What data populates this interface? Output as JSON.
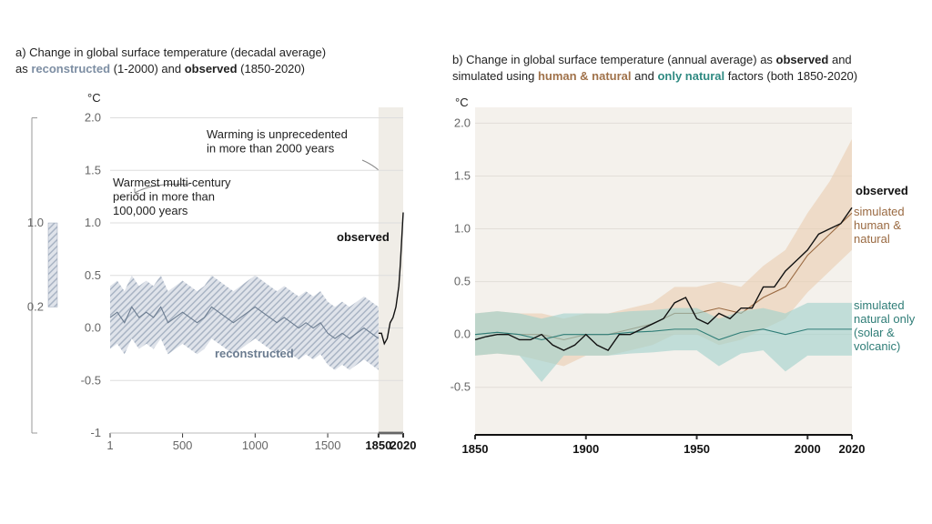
{
  "chart_data": [
    {
      "type": "line",
      "title_lines": [
        [
          {
            "text": "a) Change in global surface temperature (decadal average)"
          }
        ],
        [
          {
            "text": "as "
          },
          {
            "text": "reconstructed",
            "color": "#7d8ea3",
            "bold": true
          },
          {
            "text": " (1-2000) and "
          },
          {
            "text": "observed",
            "bold": true
          },
          {
            "text": " (1850-2020)"
          }
        ]
      ],
      "unit": "°C",
      "xlim": [
        1,
        2020
      ],
      "ylim": [
        -1,
        2.1
      ],
      "xticks": [
        1,
        500,
        1000,
        1500,
        1850,
        2020
      ],
      "yticks": [
        -1,
        -0.5,
        {
          "value": 0,
          "label": "0.0"
        },
        0.5,
        {
          "value": 1,
          "label": "1.0"
        },
        1.5,
        {
          "value": 2,
          "label": "2.0"
        }
      ],
      "grid": true,
      "highlight_x": [
        1850,
        2020
      ],
      "highlight_color": "#f0ede7",
      "range_bar": {
        "values": [
          0.2,
          1.0
        ],
        "labels": [
          "0.2",
          "1.0"
        ],
        "color": "#9aa6b8"
      },
      "series": [
        {
          "label_lines": [
            "reconstructed"
          ],
          "color": "#6b7c90",
          "band_color": "#a9b4c4",
          "hatch": true,
          "x": [
            1,
            50,
            100,
            150,
            200,
            250,
            300,
            350,
            400,
            450,
            500,
            550,
            600,
            650,
            700,
            750,
            800,
            850,
            900,
            950,
            1000,
            1050,
            1100,
            1150,
            1200,
            1250,
            1300,
            1350,
            1400,
            1450,
            1500,
            1550,
            1600,
            1650,
            1700,
            1750,
            1800,
            1850
          ],
          "values": [
            0.1,
            0.15,
            0.05,
            0.2,
            0.1,
            0.15,
            0.1,
            0.2,
            0.05,
            0.1,
            0.15,
            0.1,
            0.05,
            0.1,
            0.2,
            0.15,
            0.1,
            0.05,
            0.1,
            0.15,
            0.2,
            0.15,
            0.1,
            0.05,
            0.1,
            0.05,
            0.0,
            0.05,
            0.0,
            0.05,
            -0.05,
            -0.1,
            -0.05,
            -0.1,
            -0.05,
            0.0,
            -0.05,
            -0.1
          ],
          "upper": [
            0.4,
            0.45,
            0.35,
            0.5,
            0.4,
            0.45,
            0.4,
            0.5,
            0.35,
            0.4,
            0.45,
            0.4,
            0.35,
            0.4,
            0.5,
            0.45,
            0.4,
            0.35,
            0.4,
            0.45,
            0.5,
            0.45,
            0.4,
            0.35,
            0.4,
            0.35,
            0.3,
            0.35,
            0.3,
            0.35,
            0.25,
            0.2,
            0.25,
            0.2,
            0.25,
            0.3,
            0.25,
            0.2
          ],
          "lower": [
            -0.2,
            -0.15,
            -0.25,
            -0.1,
            -0.2,
            -0.15,
            -0.2,
            -0.1,
            -0.25,
            -0.2,
            -0.15,
            -0.2,
            -0.25,
            -0.2,
            -0.1,
            -0.15,
            -0.2,
            -0.25,
            -0.2,
            -0.15,
            -0.1,
            -0.15,
            -0.2,
            -0.25,
            -0.2,
            -0.25,
            -0.3,
            -0.25,
            -0.3,
            -0.25,
            -0.35,
            -0.4,
            -0.35,
            -0.4,
            -0.35,
            -0.3,
            -0.35,
            -0.4
          ]
        },
        {
          "label_lines": [
            "observed"
          ],
          "color": "#111111",
          "x": [
            1850,
            1870,
            1890,
            1910,
            1930,
            1950,
            1970,
            1990,
            2000,
            2010,
            2020
          ],
          "values": [
            -0.05,
            -0.05,
            -0.15,
            -0.1,
            0.05,
            0.1,
            0.2,
            0.4,
            0.6,
            0.85,
            1.1
          ]
        }
      ],
      "annotations": [
        {
          "lines": [
            "Warming is unprecedented",
            "in more than 2000 years"
          ]
        },
        {
          "lines": [
            "Warmest multi-century",
            "period in more than",
            "100,000 years"
          ]
        }
      ]
    },
    {
      "type": "line",
      "title_lines": [
        [
          {
            "text": "b) Change in global surface temperature (annual average) as "
          },
          {
            "text": "observed",
            "bold": true
          },
          {
            "text": " and"
          }
        ],
        [
          {
            "text": "simulated using "
          },
          {
            "text": "human & natural",
            "color": "#a0724a",
            "bold": true
          },
          {
            "text": " and "
          },
          {
            "text": "only natural",
            "color": "#2f8a82",
            "bold": true
          },
          {
            "text": " factors (both 1850-2020)"
          }
        ]
      ],
      "unit": "°C",
      "xlim": [
        1850,
        2020
      ],
      "ylim": [
        -0.95,
        2.15
      ],
      "xticks": [
        1850,
        1900,
        1950,
        2000,
        2020
      ],
      "yticks": [
        -0.5,
        {
          "value": 0,
          "label": "0.0"
        },
        0.5,
        {
          "value": 1,
          "label": "1.0"
        },
        1.5,
        {
          "value": 2,
          "label": "2.0"
        }
      ],
      "grid": true,
      "background": "#f4f1ec",
      "series": [
        {
          "label_lines": [
            "simulated",
            "human &",
            "natural"
          ],
          "color": "#9a6a42",
          "band_color": "#e9cdb0",
          "x": [
            1850,
            1860,
            1870,
            1880,
            1890,
            1900,
            1910,
            1920,
            1930,
            1940,
            1950,
            1960,
            1970,
            1980,
            1990,
            2000,
            2010,
            2020
          ],
          "values": [
            0.0,
            0.02,
            0.0,
            0.0,
            -0.05,
            0.0,
            0.0,
            0.05,
            0.1,
            0.2,
            0.2,
            0.25,
            0.2,
            0.35,
            0.45,
            0.75,
            0.95,
            1.15
          ],
          "upper": [
            0.2,
            0.22,
            0.2,
            0.2,
            0.15,
            0.2,
            0.2,
            0.25,
            0.3,
            0.45,
            0.45,
            0.5,
            0.45,
            0.65,
            0.8,
            1.15,
            1.45,
            1.85
          ],
          "lower": [
            -0.2,
            -0.18,
            -0.2,
            -0.25,
            -0.3,
            -0.2,
            -0.2,
            -0.15,
            -0.1,
            0.0,
            0.0,
            -0.1,
            -0.05,
            0.05,
            0.15,
            0.4,
            0.6,
            0.8
          ]
        },
        {
          "label_lines": [
            "simulated",
            "natural only",
            "(solar &",
            "volcanic)"
          ],
          "color": "#2f7d77",
          "band_color": "#9fd0cb",
          "x": [
            1850,
            1860,
            1870,
            1880,
            1890,
            1900,
            1910,
            1920,
            1930,
            1940,
            1950,
            1960,
            1970,
            1980,
            1990,
            2000,
            2010,
            2020
          ],
          "values": [
            0.0,
            0.02,
            0.0,
            -0.05,
            0.0,
            0.0,
            0.0,
            0.02,
            0.03,
            0.05,
            0.05,
            -0.05,
            0.02,
            0.05,
            0.0,
            0.05,
            0.05,
            0.05
          ],
          "upper": [
            0.2,
            0.22,
            0.2,
            0.15,
            0.2,
            0.2,
            0.2,
            0.22,
            0.23,
            0.25,
            0.25,
            0.15,
            0.22,
            0.25,
            0.2,
            0.3,
            0.3,
            0.3
          ],
          "lower": [
            -0.2,
            -0.18,
            -0.2,
            -0.45,
            -0.2,
            -0.2,
            -0.2,
            -0.18,
            -0.17,
            -0.15,
            -0.15,
            -0.3,
            -0.18,
            -0.15,
            -0.35,
            -0.2,
            -0.2,
            -0.2
          ]
        },
        {
          "label_lines": [
            "observed"
          ],
          "color": "#111111",
          "x": [
            1850,
            1855,
            1860,
            1865,
            1870,
            1875,
            1880,
            1885,
            1890,
            1895,
            1900,
            1905,
            1910,
            1915,
            1920,
            1925,
            1930,
            1935,
            1940,
            1945,
            1950,
            1955,
            1960,
            1965,
            1970,
            1975,
            1980,
            1985,
            1990,
            1995,
            2000,
            2005,
            2010,
            2015,
            2020
          ],
          "values": [
            -0.05,
            -0.02,
            0.0,
            0.0,
            -0.05,
            -0.05,
            0.0,
            -0.1,
            -0.15,
            -0.1,
            0.0,
            -0.1,
            -0.15,
            0.0,
            0.0,
            0.05,
            0.1,
            0.15,
            0.3,
            0.35,
            0.15,
            0.1,
            0.2,
            0.15,
            0.25,
            0.25,
            0.45,
            0.45,
            0.6,
            0.7,
            0.8,
            0.95,
            1.0,
            1.05,
            1.2
          ]
        }
      ],
      "annotations": []
    }
  ]
}
